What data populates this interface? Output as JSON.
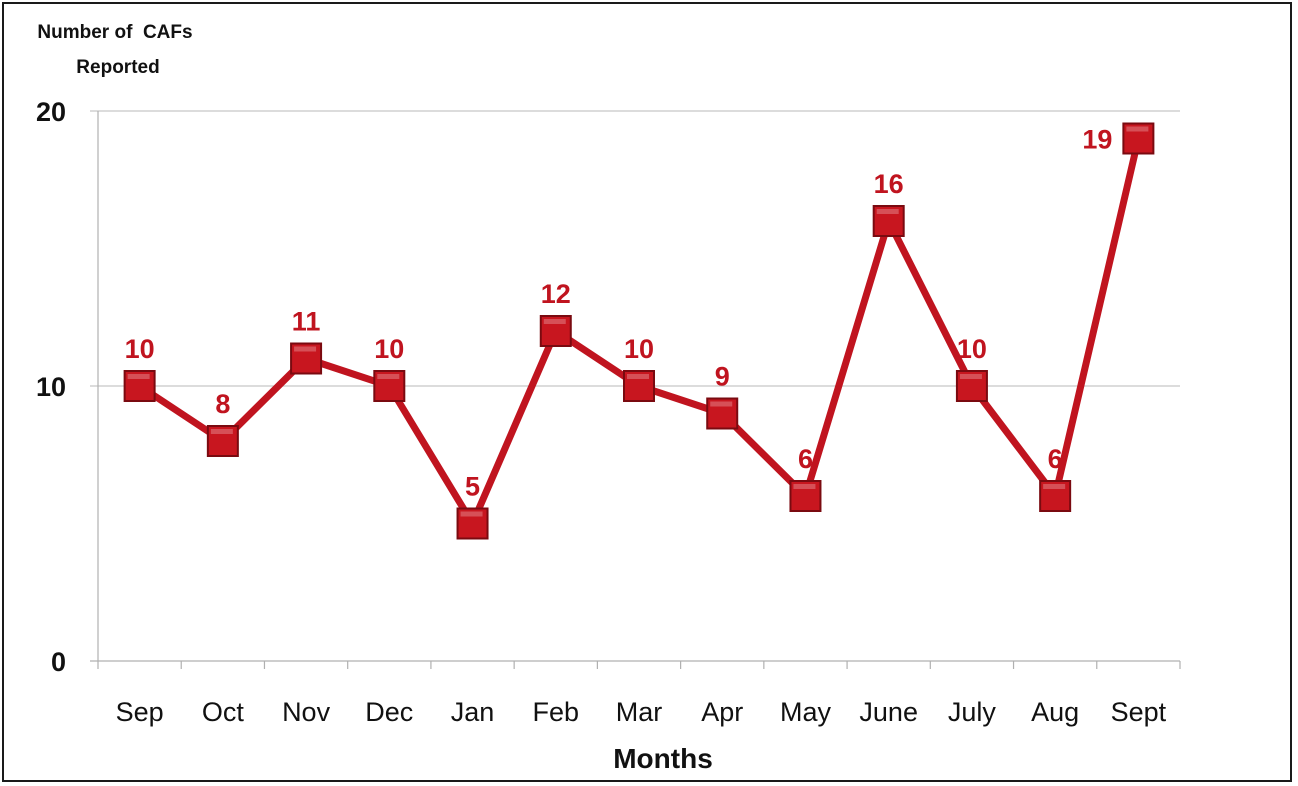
{
  "chart_data": {
    "type": "line",
    "title": "",
    "ylabel_lines": [
      "Number of  CAFs",
      "Reported"
    ],
    "xlabel": "Months",
    "categories": [
      "Sep",
      "Oct",
      "Nov",
      "Dec",
      "Jan",
      "Feb",
      "Mar",
      "Apr",
      "May",
      "June",
      "July",
      "Aug",
      "Sept"
    ],
    "values": [
      10,
      8,
      11,
      10,
      5,
      12,
      10,
      9,
      6,
      16,
      10,
      6,
      19
    ],
    "data_labels": [
      "10",
      "8",
      "11",
      "10",
      "5",
      "12",
      "10",
      "9",
      "6",
      "16",
      "10",
      "6",
      "19"
    ],
    "ylim": [
      0,
      20
    ],
    "yticks": [
      0,
      10,
      20
    ],
    "ytick_labels": [
      "0",
      "10",
      "20"
    ],
    "grid": "horizontal",
    "legend": "none",
    "marker": "square",
    "colors": {
      "line": "#c0141f",
      "marker": "#c8161f",
      "marker_border": "#7a0a10",
      "data_label": "#c0141f",
      "grid": "#c8c8c8",
      "axis": "#b0b0b0",
      "text": "#111111"
    }
  }
}
